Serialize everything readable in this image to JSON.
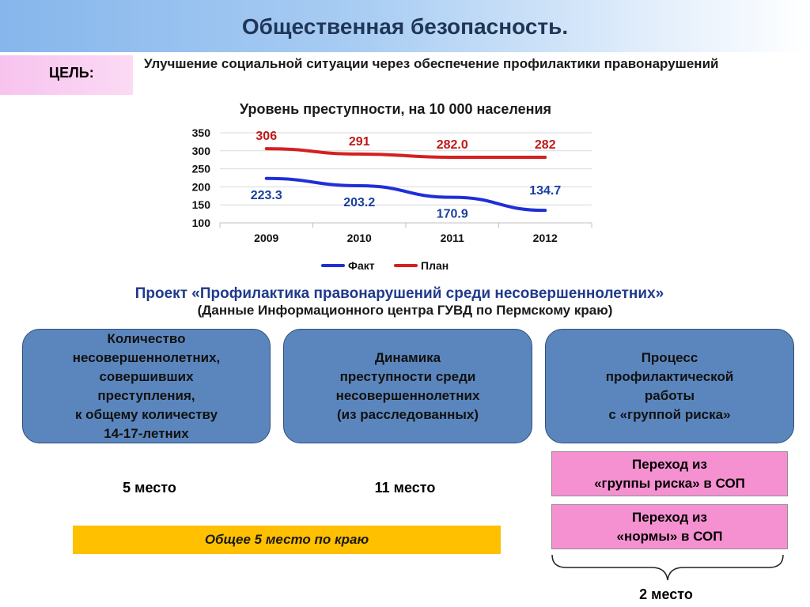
{
  "header": {
    "title": "Общественная безопасность."
  },
  "goal": {
    "label": "ЦЕЛЬ:",
    "text": "Улучшение социальной ситуации через обеспечение профилактики правонарушений"
  },
  "chart_data": {
    "type": "line",
    "title": "Уровень преступности, на 10 000 населения",
    "categories": [
      "2009",
      "2010",
      "2011",
      "2012"
    ],
    "ylim": [
      100,
      350
    ],
    "yticks": [
      100,
      150,
      200,
      250,
      300,
      350
    ],
    "ytick_labels": [
      "100",
      "150",
      "200",
      "250",
      "300",
      "350"
    ],
    "grid": true,
    "legend_position": "bottom",
    "series": [
      {
        "name": "Факт",
        "values": [
          223.3,
          203.2,
          170.9,
          134.7
        ],
        "labels": [
          "223.3",
          "203.2",
          "170.9",
          "134.7"
        ],
        "color": "#1f2fd6"
      },
      {
        "name": "План",
        "values": [
          306,
          291,
          282.0,
          282
        ],
        "labels": [
          "306",
          "291",
          "282.0",
          "282"
        ],
        "color": "#d42020"
      }
    ]
  },
  "project": {
    "title": "Проект «Профилактика правонарушений среди несовершеннолетних»",
    "subtitle": "(Данные Информационного центра ГУВД по Пермскому краю)"
  },
  "boxes": [
    {
      "text": "Количество\nнесовершеннолетних,\nсовершивших\nпреступления,\nк общему количеству\n14-17-летних"
    },
    {
      "text": "Динамика\nпреступности среди\nнесовершеннолетних\n(из расследованных)"
    },
    {
      "text": "Процесс\nпрофилактической\nработы\nс «группой риска»"
    }
  ],
  "ranks": {
    "box1": "5 место",
    "box2": "11 место",
    "box3": "2 место"
  },
  "transitions": [
    {
      "text": "Переход из\n«группы риска» в СОП"
    },
    {
      "text": "Переход из\n«нормы» в СОП"
    }
  ],
  "overall": {
    "text": "Общее 5 место по краю"
  },
  "colors": {
    "title_text": "#1f3656",
    "project_title": "#1f3a8c",
    "blue_box": "#5b86bd",
    "pink_box": "#f591d0",
    "overall_bar": "#ffc000",
    "fact_line": "#1f2fd6",
    "plan_line": "#d42020"
  }
}
